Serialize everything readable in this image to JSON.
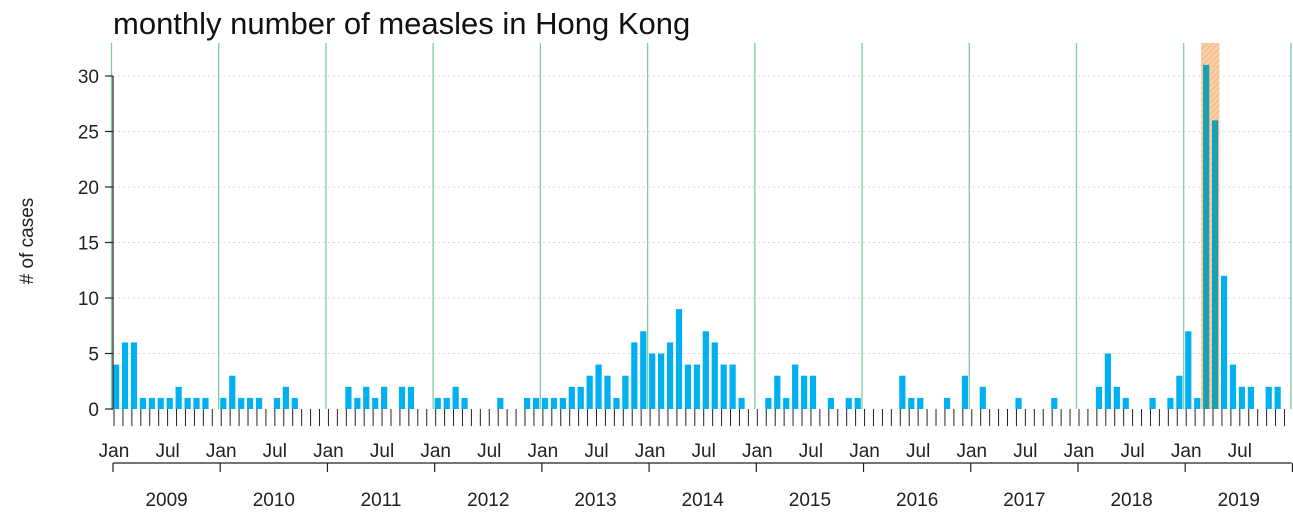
{
  "chart_data": {
    "type": "bar",
    "title": "monthly number of measles in Hong Kong",
    "xlabel": "",
    "ylabel": "# of cases",
    "ylim": [
      0,
      33
    ],
    "yticks": [
      0,
      5,
      10,
      15,
      20,
      25,
      30
    ],
    "grid": true,
    "years": [
      "2009",
      "2010",
      "2011",
      "2012",
      "2013",
      "2014",
      "2015",
      "2016",
      "2017",
      "2018",
      "2019"
    ],
    "month_tick_labels": {
      "1": "Jan",
      "7": "Jul"
    },
    "values": [
      4,
      6,
      6,
      1,
      1,
      1,
      1,
      2,
      1,
      1,
      1,
      0,
      1,
      3,
      1,
      1,
      1,
      0,
      1,
      2,
      1,
      0,
      0,
      0,
      0,
      0,
      2,
      1,
      2,
      1,
      2,
      0,
      2,
      2,
      0,
      0,
      1,
      1,
      2,
      1,
      0,
      0,
      0,
      1,
      0,
      0,
      1,
      1,
      1,
      1,
      1,
      2,
      2,
      3,
      4,
      3,
      1,
      3,
      6,
      7,
      5,
      5,
      6,
      9,
      4,
      4,
      7,
      6,
      4,
      4,
      1,
      0,
      0,
      1,
      3,
      1,
      4,
      3,
      3,
      0,
      1,
      0,
      1,
      1,
      0,
      0,
      0,
      0,
      3,
      1,
      1,
      0,
      0,
      1,
      0,
      3,
      0,
      2,
      0,
      0,
      0,
      1,
      0,
      0,
      0,
      1,
      0,
      0,
      0,
      0,
      2,
      5,
      2,
      1,
      0,
      0,
      1,
      0,
      1,
      3,
      7,
      1,
      31,
      26,
      12,
      4,
      2,
      2,
      0,
      2,
      2
    ],
    "highlight": {
      "start": "2019-03",
      "end": "2019-04"
    },
    "colors": {
      "bar": "#00b0f0",
      "highlight_bar": "#1a9fb5",
      "year_line": "#7ccf9a",
      "highlight_fill": "#f8cfa6",
      "highlight_hatch": "#f0a860",
      "grid": "#d9d9d9",
      "axis": "#222222"
    }
  }
}
